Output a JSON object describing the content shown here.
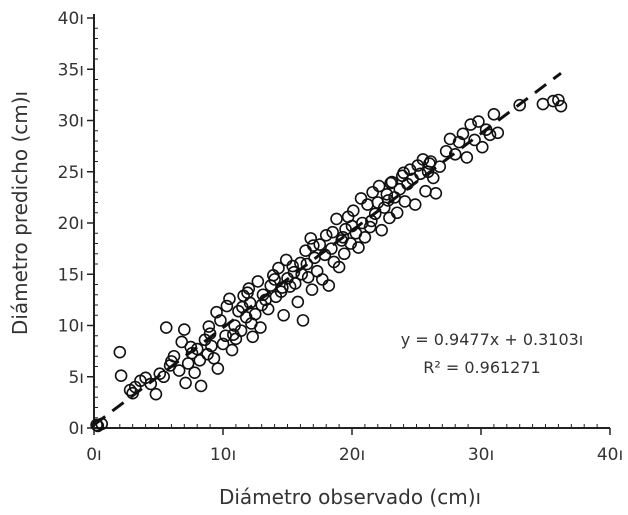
{
  "chart_data": {
    "type": "scatter",
    "xlabel": "Diámetro observado (cm)ı",
    "ylabel": "Diámetro predicho (cm)ı",
    "xlim": [
      0,
      40
    ],
    "ylim": [
      0,
      40
    ],
    "x_ticks": [
      0,
      10,
      20,
      30,
      40
    ],
    "y_ticks": [
      0,
      5,
      10,
      15,
      20,
      25,
      30,
      35,
      40
    ],
    "x_tick_labels": [
      "0ı",
      "10ı",
      "20ı",
      "30ı",
      "40ı"
    ],
    "y_tick_labels": [
      "0ı",
      "5ı",
      "10ı",
      "15ı",
      "20ı",
      "25ı",
      "30ı",
      "35ı",
      "40ı"
    ],
    "grid": false,
    "marker": "open-circle",
    "fit_line": {
      "slope": 0.9477,
      "intercept": 0.3103,
      "x_range": [
        0,
        36.2
      ],
      "style": "dashed"
    },
    "annotations": {
      "equation": "y = 0.9477x + 0.3103ı",
      "r2_label": "R² = 0.961271"
    },
    "points": [
      [
        0.3,
        0.2
      ],
      [
        0.6,
        0.4
      ],
      [
        0.2,
        0.3
      ],
      [
        2.0,
        7.4
      ],
      [
        2.1,
        5.1
      ],
      [
        2.8,
        3.7
      ],
      [
        3.0,
        3.4
      ],
      [
        3.2,
        4.0
      ],
      [
        3.6,
        4.6
      ],
      [
        4.0,
        4.9
      ],
      [
        4.4,
        4.3
      ],
      [
        4.8,
        3.3
      ],
      [
        5.1,
        5.3
      ],
      [
        5.4,
        5.0
      ],
      [
        5.6,
        9.8
      ],
      [
        5.9,
        6.1
      ],
      [
        6.2,
        7.0
      ],
      [
        6.6,
        5.6
      ],
      [
        6.8,
        8.4
      ],
      [
        7.0,
        9.6
      ],
      [
        7.1,
        4.4
      ],
      [
        7.3,
        6.3
      ],
      [
        7.6,
        7.3
      ],
      [
        7.8,
        5.4
      ],
      [
        8.0,
        7.7
      ],
      [
        8.2,
        6.6
      ],
      [
        8.3,
        4.1
      ],
      [
        8.6,
        8.6
      ],
      [
        8.9,
        9.9
      ],
      [
        9.1,
        8.0
      ],
      [
        9.3,
        6.8
      ],
      [
        9.5,
        11.3
      ],
      [
        9.6,
        5.8
      ],
      [
        9.8,
        10.5
      ],
      [
        10.0,
        8.2
      ],
      [
        10.2,
        9.0
      ],
      [
        10.3,
        11.9
      ],
      [
        10.5,
        12.6
      ],
      [
        10.7,
        7.6
      ],
      [
        10.9,
        10.0
      ],
      [
        11.0,
        8.7
      ],
      [
        11.2,
        11.4
      ],
      [
        11.4,
        9.5
      ],
      [
        11.6,
        12.9
      ],
      [
        11.8,
        10.8
      ],
      [
        12.0,
        13.6
      ],
      [
        12.1,
        12.2
      ],
      [
        12.3,
        8.9
      ],
      [
        12.5,
        11.1
      ],
      [
        12.7,
        14.3
      ],
      [
        12.9,
        9.8
      ],
      [
        13.1,
        13.0
      ],
      [
        13.3,
        12.5
      ],
      [
        13.5,
        11.6
      ],
      [
        13.7,
        13.9
      ],
      [
        13.9,
        14.9
      ],
      [
        14.1,
        12.8
      ],
      [
        14.3,
        15.6
      ],
      [
        14.5,
        13.3
      ],
      [
        14.7,
        11.0
      ],
      [
        14.9,
        16.4
      ],
      [
        15.0,
        14.6
      ],
      [
        15.2,
        13.8
      ],
      [
        15.4,
        15.8
      ],
      [
        15.6,
        14.1
      ],
      [
        15.8,
        12.3
      ],
      [
        16.0,
        16.1
      ],
      [
        16.1,
        15.0
      ],
      [
        16.2,
        10.5
      ],
      [
        16.4,
        17.3
      ],
      [
        16.6,
        14.7
      ],
      [
        16.8,
        18.5
      ],
      [
        16.9,
        13.5
      ],
      [
        17.1,
        16.6
      ],
      [
        17.3,
        15.3
      ],
      [
        17.5,
        17.9
      ],
      [
        17.7,
        14.5
      ],
      [
        17.9,
        16.9
      ],
      [
        18.0,
        18.8
      ],
      [
        18.2,
        13.9
      ],
      [
        18.4,
        17.5
      ],
      [
        18.6,
        16.2
      ],
      [
        18.8,
        20.4
      ],
      [
        19.0,
        15.7
      ],
      [
        19.2,
        18.3
      ],
      [
        19.4,
        17.0
      ],
      [
        19.5,
        19.4
      ],
      [
        19.7,
        20.6
      ],
      [
        19.9,
        18.0
      ],
      [
        20.1,
        21.2
      ],
      [
        20.3,
        19.0
      ],
      [
        20.5,
        17.6
      ],
      [
        20.7,
        22.4
      ],
      [
        20.8,
        20.0
      ],
      [
        21.0,
        18.6
      ],
      [
        21.2,
        21.8
      ],
      [
        21.4,
        19.6
      ],
      [
        21.6,
        23.0
      ],
      [
        21.8,
        20.9
      ],
      [
        22.0,
        22.0
      ],
      [
        22.1,
        23.6
      ],
      [
        22.3,
        19.3
      ],
      [
        22.5,
        21.5
      ],
      [
        22.7,
        22.8
      ],
      [
        22.9,
        20.5
      ],
      [
        23.1,
        24.0
      ],
      [
        23.3,
        22.5
      ],
      [
        23.5,
        21.0
      ],
      [
        23.7,
        23.3
      ],
      [
        23.9,
        24.6
      ],
      [
        24.1,
        22.1
      ],
      [
        24.3,
        23.8
      ],
      [
        24.5,
        25.2
      ],
      [
        24.7,
        24.3
      ],
      [
        24.9,
        21.8
      ],
      [
        25.1,
        25.6
      ],
      [
        25.3,
        24.8
      ],
      [
        25.5,
        26.2
      ],
      [
        25.7,
        23.1
      ],
      [
        25.9,
        25.0
      ],
      [
        26.1,
        26.0
      ],
      [
        26.3,
        24.4
      ],
      [
        26.5,
        22.9
      ],
      [
        26.8,
        25.5
      ],
      [
        27.3,
        27.0
      ],
      [
        27.6,
        28.2
      ],
      [
        28.0,
        26.7
      ],
      [
        28.3,
        27.9
      ],
      [
        28.6,
        28.7
      ],
      [
        28.9,
        26.4
      ],
      [
        29.2,
        29.6
      ],
      [
        29.5,
        28.1
      ],
      [
        29.8,
        29.9
      ],
      [
        30.1,
        27.4
      ],
      [
        30.4,
        29.1
      ],
      [
        30.7,
        28.6
      ],
      [
        31.0,
        30.6
      ],
      [
        31.3,
        28.8
      ],
      [
        33.0,
        31.5
      ],
      [
        34.8,
        31.6
      ],
      [
        35.6,
        31.9
      ],
      [
        36.0,
        32.0
      ],
      [
        36.2,
        31.4
      ],
      [
        6.0,
        6.5
      ],
      [
        7.5,
        7.9
      ],
      [
        9.0,
        9.2
      ],
      [
        11.5,
        11.8
      ],
      [
        13.0,
        12.0
      ],
      [
        14.0,
        14.5
      ],
      [
        15.5,
        15.2
      ],
      [
        17.0,
        17.8
      ],
      [
        18.5,
        19.1
      ],
      [
        20.0,
        19.7
      ],
      [
        21.5,
        20.2
      ],
      [
        23.0,
        23.9
      ],
      [
        24.0,
        24.9
      ],
      [
        26.0,
        25.8
      ],
      [
        12.2,
        10.2
      ],
      [
        10.8,
        9.1
      ],
      [
        8.8,
        7.2
      ],
      [
        16.5,
        16.0
      ],
      [
        19.3,
        18.6
      ],
      [
        22.8,
        22.2
      ],
      [
        14.6,
        13.7
      ],
      [
        11.9,
        13.2
      ]
    ]
  }
}
